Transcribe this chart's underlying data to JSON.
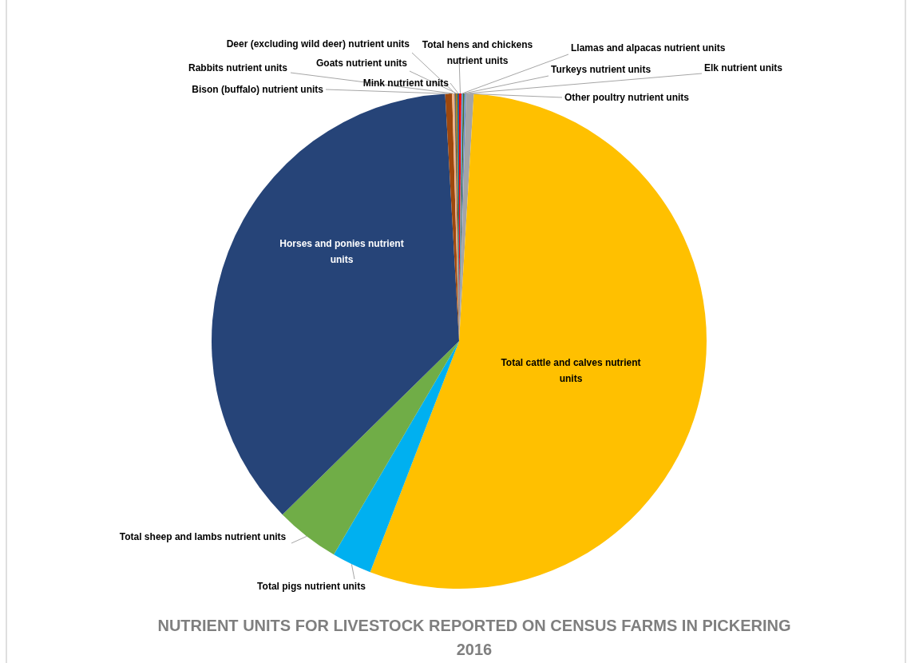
{
  "chart_data": {
    "type": "pie",
    "title": "NUTRIENT UNITS FOR LIVESTOCK REPORTED ON CENSUS FARMS IN PICKERING 2016",
    "categories": [
      "Total hens and chickens nutrient units",
      "Llamas and alpacas nutrient units",
      "Turkeys nutrient units",
      "Elk nutrient units",
      "Other poultry nutrient units",
      "Total cattle and calves nutrient units",
      "Total pigs nutrient units",
      "Total sheep and lambs nutrient units",
      "Horses and ponies nutrient units",
      "Bison (buffalo) nutrient units",
      "Rabbits nutrient units",
      "Deer (excluding wild deer) nutrient units",
      "Goats nutrient units",
      "Mink nutrient units"
    ],
    "values": [
      0.15,
      0.1,
      0.1,
      0.1,
      0.5,
      54.9,
      2.6,
      4.2,
      36.45,
      0.45,
      0.15,
      0.1,
      0.1,
      0.1
    ],
    "colors": [
      "#ff0000",
      "#5b9bd5",
      "#43682b",
      "#698ed0",
      "#a5a5a5",
      "#ffc000",
      "#00b0f0",
      "#70ad47",
      "#264478",
      "#9e480e",
      "#f4b183",
      "#636363",
      "#997300",
      "#255e91"
    ]
  }
}
